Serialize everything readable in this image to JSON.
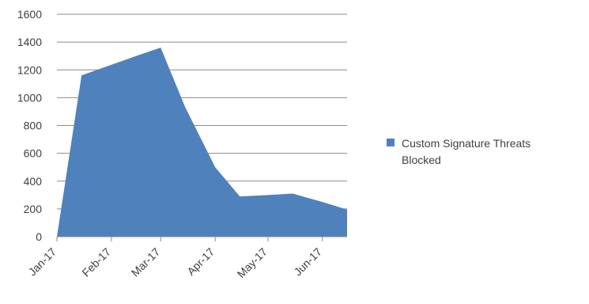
{
  "chart_data": {
    "type": "area",
    "x": [
      "2017-01-01",
      "2017-01-15",
      "2017-02-15",
      "2017-03-01",
      "2017-03-15",
      "2017-04-01",
      "2017-04-15",
      "2017-05-01",
      "2017-05-15",
      "2017-06-01",
      "2017-06-15"
    ],
    "series": [
      {
        "name": "Custom Signature Threats Blocked",
        "values": [
          0,
          1160,
          1300,
          1360,
          930,
          500,
          290,
          300,
          310,
          250,
          195
        ]
      }
    ],
    "xtick_labels": [
      "Jan-17",
      "Feb-17",
      "Mar-17",
      "Apr-17",
      "May-17",
      "Jun-17"
    ],
    "xticks": [
      "2017-01-01",
      "2017-02-01",
      "2017-03-01",
      "2017-04-01",
      "2017-05-01",
      "2017-06-01"
    ],
    "x_range": [
      "2017-01-01",
      "2017-06-15"
    ],
    "ylim": [
      0,
      1600
    ],
    "yticks": [
      0,
      200,
      400,
      600,
      800,
      1000,
      1200,
      1400,
      1600
    ],
    "grid": "horizontal",
    "legend_position": "right",
    "series_color": "#4F81BD",
    "title": "",
    "xlabel": "",
    "ylabel": ""
  }
}
